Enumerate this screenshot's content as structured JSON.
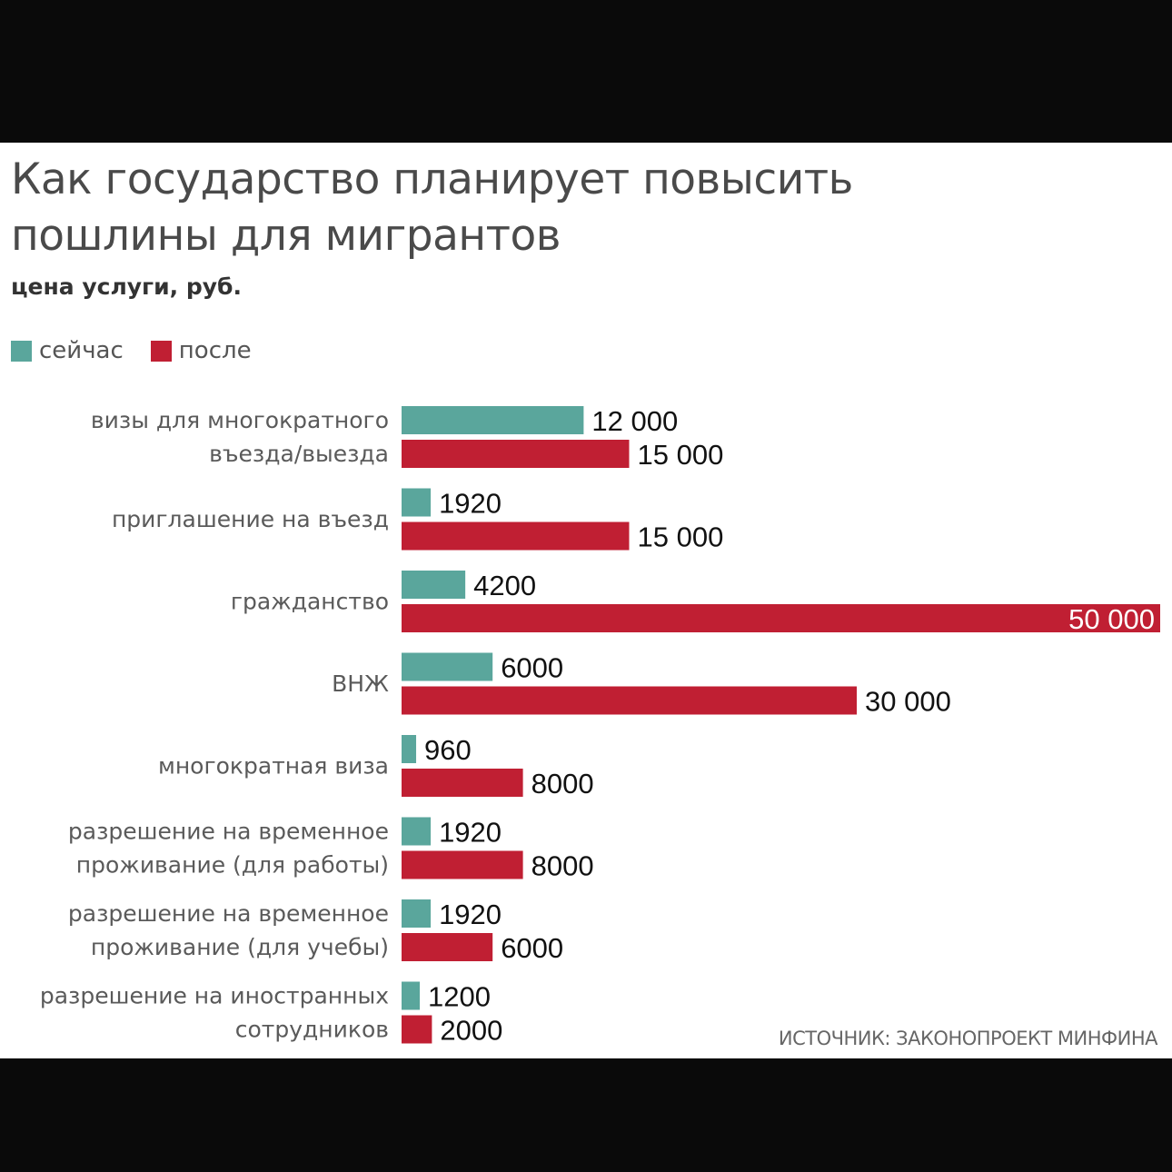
{
  "title": "Как государство планирует повысить\nпошлины для мигрантов",
  "subtitle": "цена услуги, руб.",
  "source": "ИСТОЧНИК: ЗАКОНОПРОЕКТ МИНФИНА",
  "colors": {
    "now": "#5aa69c",
    "after": "#c01f33",
    "background": "#ffffff"
  },
  "chart_data": {
    "type": "bar",
    "orientation": "horizontal",
    "legend_position": "top-left",
    "grid": false,
    "xlim": [
      0,
      50000
    ],
    "series": [
      {
        "name": "сейчас",
        "values": [
          12000,
          1920,
          4200,
          6000,
          960,
          1920,
          1920,
          1200
        ]
      },
      {
        "name": "после",
        "values": [
          15000,
          15000,
          50000,
          30000,
          8000,
          8000,
          6000,
          2000
        ]
      }
    ],
    "categories": [
      [
        "визы для многократного",
        "въезда/выезда"
      ],
      [
        "приглашение на въезд"
      ],
      [
        "гражданство"
      ],
      [
        "ВНЖ"
      ],
      [
        "многократная виза"
      ],
      [
        "разрешение на временное",
        "проживание (для работы)"
      ],
      [
        "разрешение на временное",
        "проживание (для учебы)"
      ],
      [
        "разрешение на иностранных",
        "сотрудников"
      ]
    ],
    "value_labels": [
      [
        "12 000",
        "15 000"
      ],
      [
        "1920",
        "15 000"
      ],
      [
        "4200",
        "50 000"
      ],
      [
        "6000",
        "30 000"
      ],
      [
        "960",
        "8000"
      ],
      [
        "1920",
        "8000"
      ],
      [
        "1920",
        "6000"
      ],
      [
        "1200",
        "2000"
      ]
    ]
  }
}
